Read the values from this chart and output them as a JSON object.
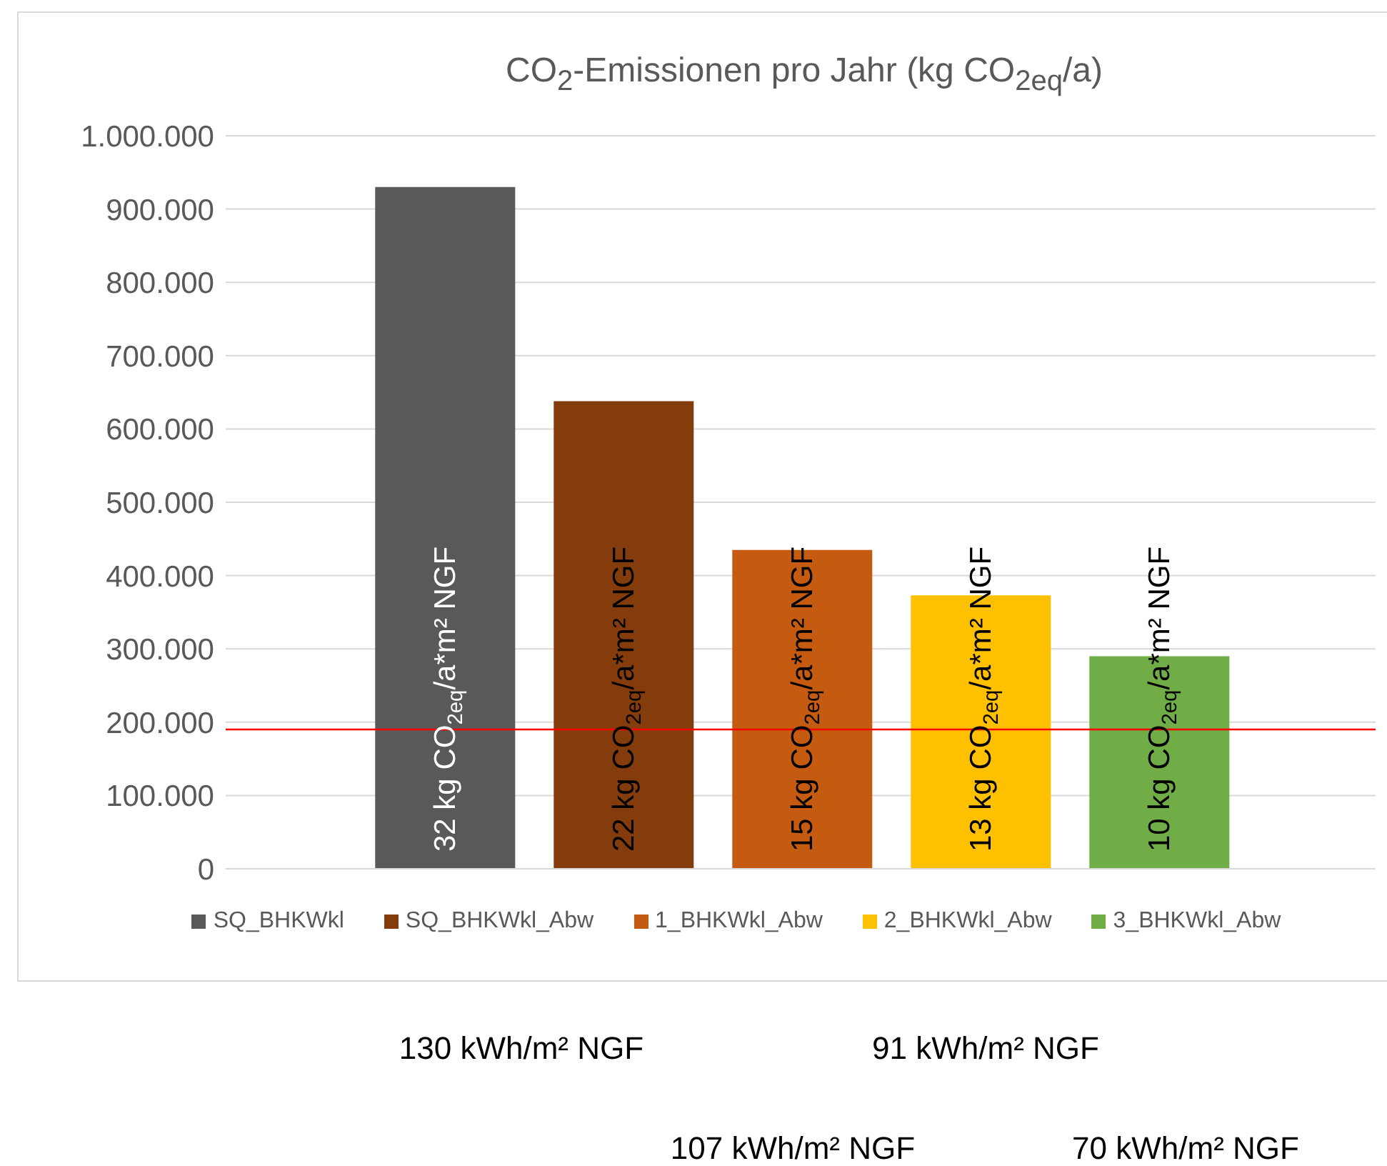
{
  "chart_data": {
    "type": "bar",
    "title": "CO$_{2}$-Emissionen pro Jahr (kg CO$_{2eq}$/a)",
    "categories": [
      null
    ],
    "series": [
      {
        "name": "SQ_BHKWkl",
        "color": "#595959",
        "values": [
          930000
        ]
      },
      {
        "name": "SQ_BHKWkl_Abw",
        "color": "#843c0c",
        "values": [
          638000
        ]
      },
      {
        "name": "1_BHKWkl_Abw",
        "color": "#c55a11",
        "values": [
          435000
        ]
      },
      {
        "name": "2_BHKWkl_Abw",
        "color": "#ffc000",
        "values": [
          373000
        ]
      },
      {
        "name": "3_BHKWkl_Abw",
        "color": "#70ad47",
        "values": [
          290000
        ]
      }
    ],
    "ylim": [
      0,
      1000000
    ],
    "yticks": [
      0,
      {
        "value": 100000,
        "label": "100.000"
      },
      {
        "value": 200000,
        "label": "200.000"
      },
      {
        "value": 300000,
        "label": "300.000"
      },
      {
        "value": 400000,
        "label": "400.000"
      },
      {
        "value": 500000,
        "label": "500.000"
      },
      {
        "value": 600000,
        "label": "600.000"
      },
      {
        "value": 700000,
        "label": "700.000"
      },
      {
        "value": 800000,
        "label": "800.000"
      },
      {
        "value": 900000,
        "label": "900.000"
      },
      {
        "value": 1000000,
        "label": "1.000.000"
      }
    ],
    "grid": "y",
    "legend": "bottom",
    "ref_lines": [
      {
        "axis": "y",
        "value": 190000,
        "color": "#ff0000"
      }
    ],
    "annotations": [
      "32 kg CO$_{2eq}$/a*m² NGF",
      "22 kg CO$_{2eq}$/a*m² NGF",
      "15 kg CO$_{2eq}$/a*m² NGF",
      "13 kg CO$_{2eq}$/a*m² NGF",
      "10 kg CO$_{2eq}$/a*m² NGF",
      "130 kWh/m² NGF",
      "91 kWh/m² NGF",
      "107 kWh/m² NGF",
      "70 kWh/m² NGF"
    ]
  }
}
